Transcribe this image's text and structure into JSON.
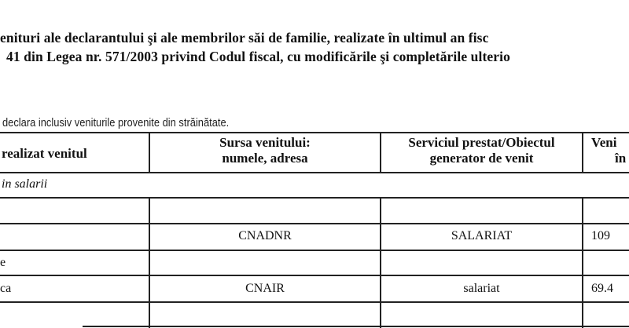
{
  "title_line1": "enituri ale declarantului şi ale membrilor săi de familie, realizate în ultimul an fisc",
  "title_line2": "41 din Legea nr. 571/2003 privind Codul fiscal, cu modificările şi completările ulterio",
  "note": "declara inclusiv veniturile provenite din străinătate.",
  "table": {
    "headers": [
      "realizat venitul",
      "Sursa venitului:\nnumele, adresa",
      "Serviciul prestat/Obiectul\ngenerator de venit",
      "Veni\nîr"
    ],
    "header_col2_l1": "Sursa venitului:",
    "header_col2_l2": "numele, adresa",
    "header_col3_l1": "Serviciul prestat/Obiectul",
    "header_col3_l2": "generator de venit",
    "header_col4_l1": "Veni",
    "header_col4_l2": "în",
    "section": "in salarii",
    "rows": [
      {
        "who": "",
        "source": "",
        "service": "",
        "income": ""
      },
      {
        "who": "",
        "source": "CNADNR",
        "service": "SALARIAT",
        "income": "109"
      },
      {
        "who": "e",
        "source": "",
        "service": "",
        "income": ""
      },
      {
        "who": "ca",
        "source": "CNAIR",
        "service": "salariat",
        "income": "69.4"
      },
      {
        "who": "",
        "source": "",
        "service": "",
        "income": ""
      }
    ]
  }
}
